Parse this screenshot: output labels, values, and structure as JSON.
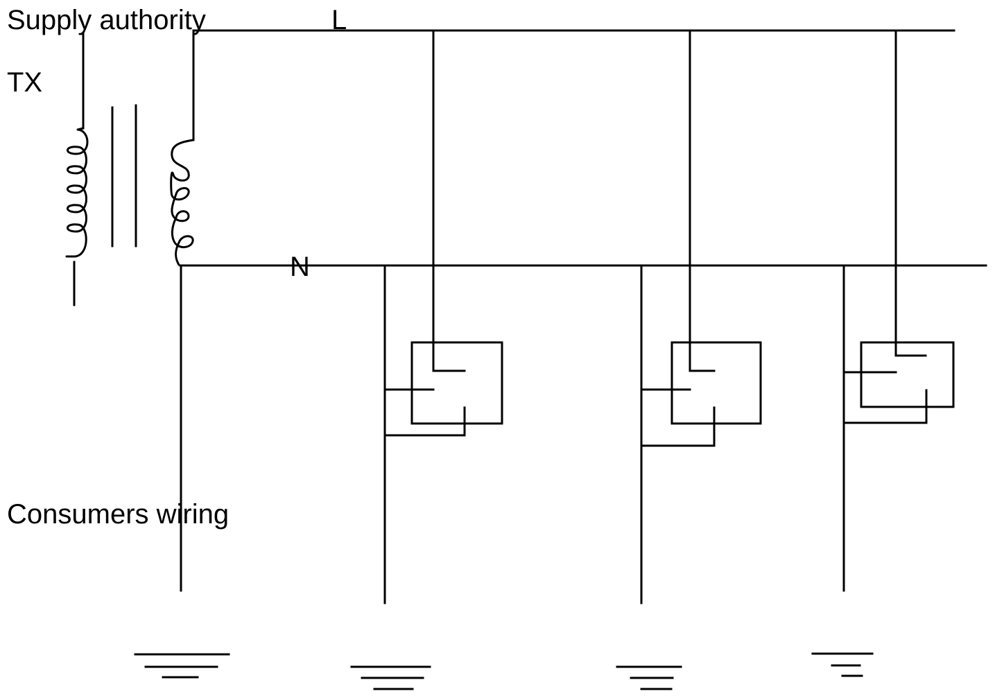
{
  "labels": {
    "supply": "Supply authority",
    "transformer": "TX",
    "line": "L",
    "neutral": "N",
    "consumers": "Consumers wiring"
  },
  "consumers": [
    {
      "name": "consumer-1"
    },
    {
      "name": "consumer-2"
    },
    {
      "name": "consumer-3"
    }
  ],
  "earth_electrodes": [
    {
      "name": "transformer-earth"
    },
    {
      "name": "consumer-1-earth"
    },
    {
      "name": "consumer-2-earth"
    },
    {
      "name": "consumer-3-earth"
    }
  ],
  "colors": {
    "stroke": "#000000",
    "background": "#ffffff"
  }
}
